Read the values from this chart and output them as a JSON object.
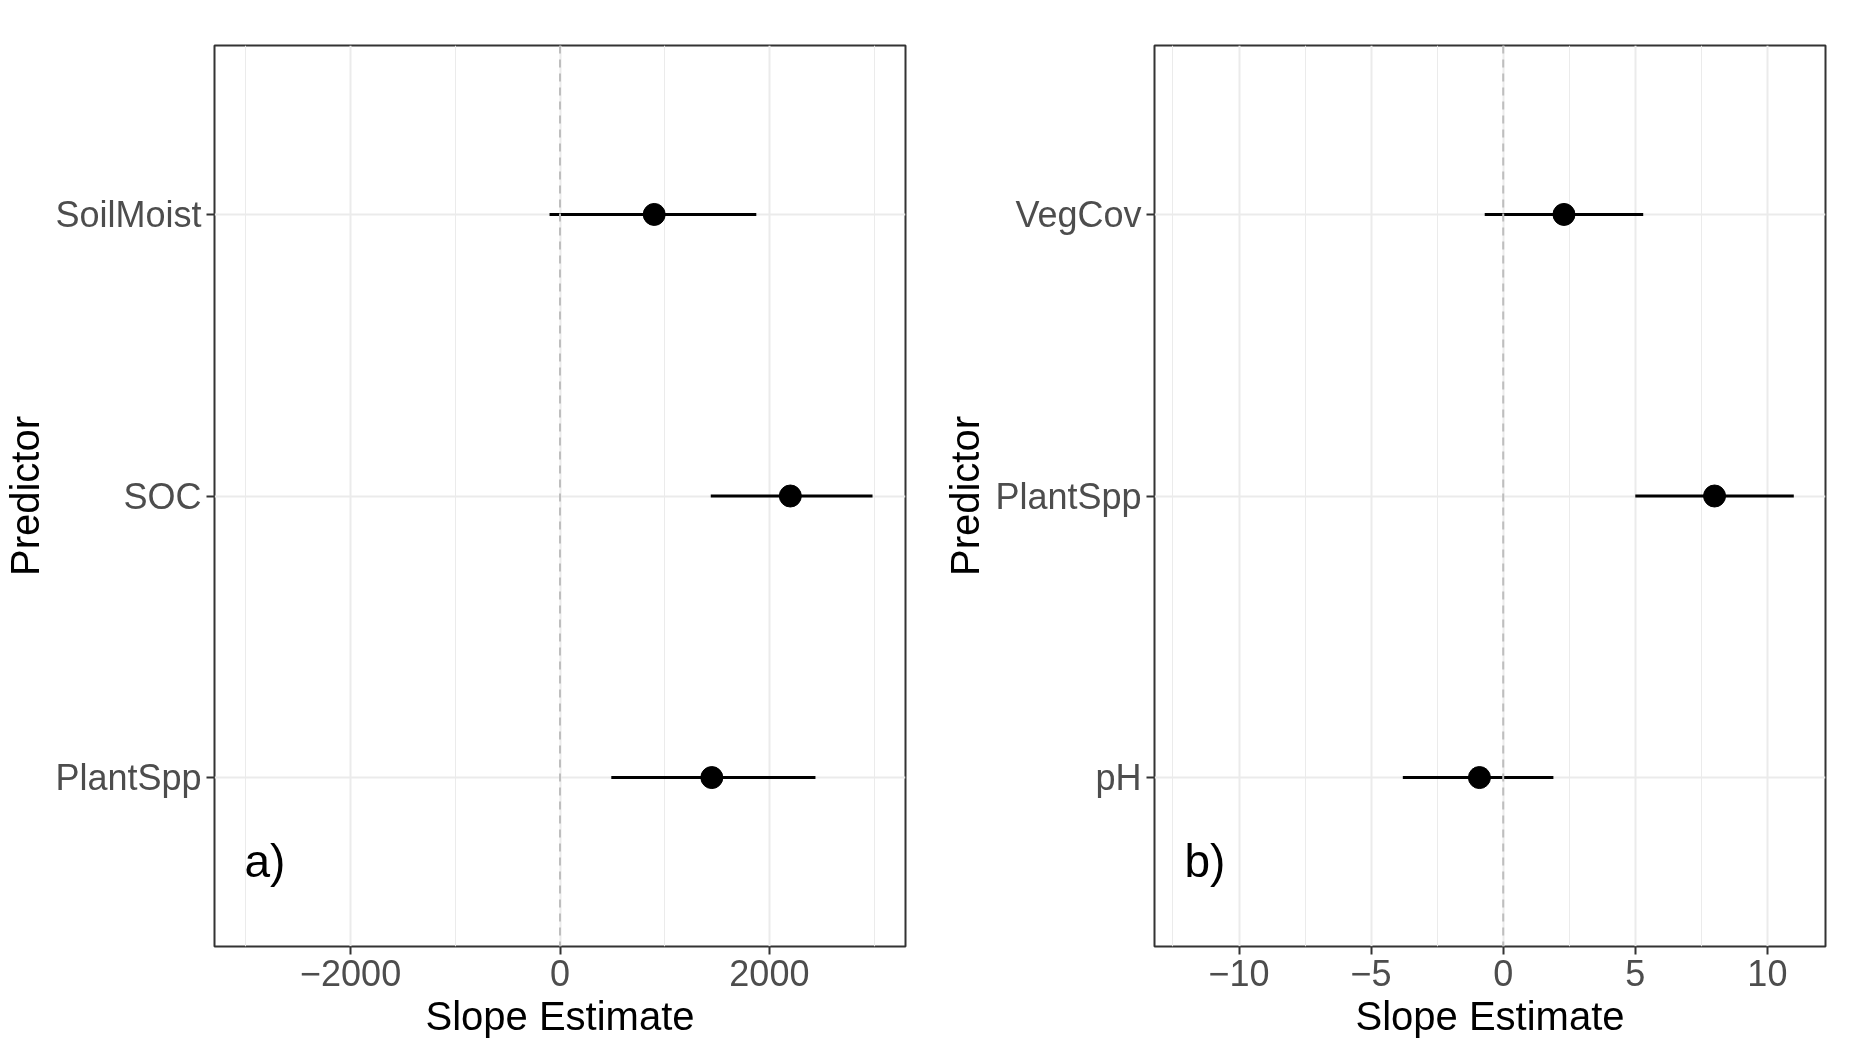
{
  "chart_data": [
    {
      "type": "scatter",
      "orientation": "horizontal",
      "categories": [
        "SoilMoist",
        "SOC",
        "PlantSpp"
      ],
      "values": [
        900,
        2200,
        1450
      ],
      "errors": [
        [
          -100,
          1875
        ],
        [
          1440,
          2985
        ],
        [
          490,
          2440
        ]
      ],
      "color": "#000000",
      "xlabel": "Slope Estimate",
      "ylabel": "Predictor",
      "xlim": [
        -3300,
        3300
      ],
      "xticks": [
        -2000,
        0,
        2000
      ],
      "grid": true,
      "marker": "circle",
      "ref_lines": [
        {
          "axis": "x",
          "value": 0,
          "color": "#bebebe",
          "line_style": "dashed"
        }
      ],
      "annotations": [
        "a)"
      ]
    },
    {
      "type": "scatter",
      "orientation": "horizontal",
      "categories": [
        "VegCov",
        "PlantSpp",
        "pH"
      ],
      "values": [
        2.3,
        8.0,
        -0.9
      ],
      "errors": [
        [
          -0.7,
          5.3
        ],
        [
          5.0,
          11.0
        ],
        [
          -3.8,
          1.9
        ]
      ],
      "color": "#000000",
      "xlabel": "Slope Estimate",
      "ylabel": "Predictor",
      "xlim": [
        -13.2,
        12.2
      ],
      "xticks": [
        -10,
        -5,
        0,
        5,
        10
      ],
      "grid": true,
      "marker": "circle",
      "ref_lines": [
        {
          "axis": "x",
          "value": 0,
          "color": "#bebebe",
          "line_style": "dashed"
        }
      ],
      "annotations": [
        "b)"
      ]
    }
  ]
}
